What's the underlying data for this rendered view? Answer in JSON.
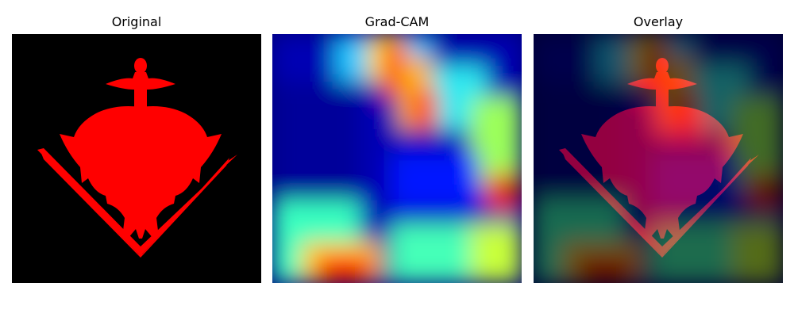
{
  "panels": [
    {
      "title": "Original"
    },
    {
      "title": "Grad-CAM"
    },
    {
      "title": "Overlay"
    }
  ],
  "colors": {
    "shape": "#ff0000",
    "background": "#000000",
    "jet_low": "#00007f",
    "jet_high": "#7f0000"
  }
}
